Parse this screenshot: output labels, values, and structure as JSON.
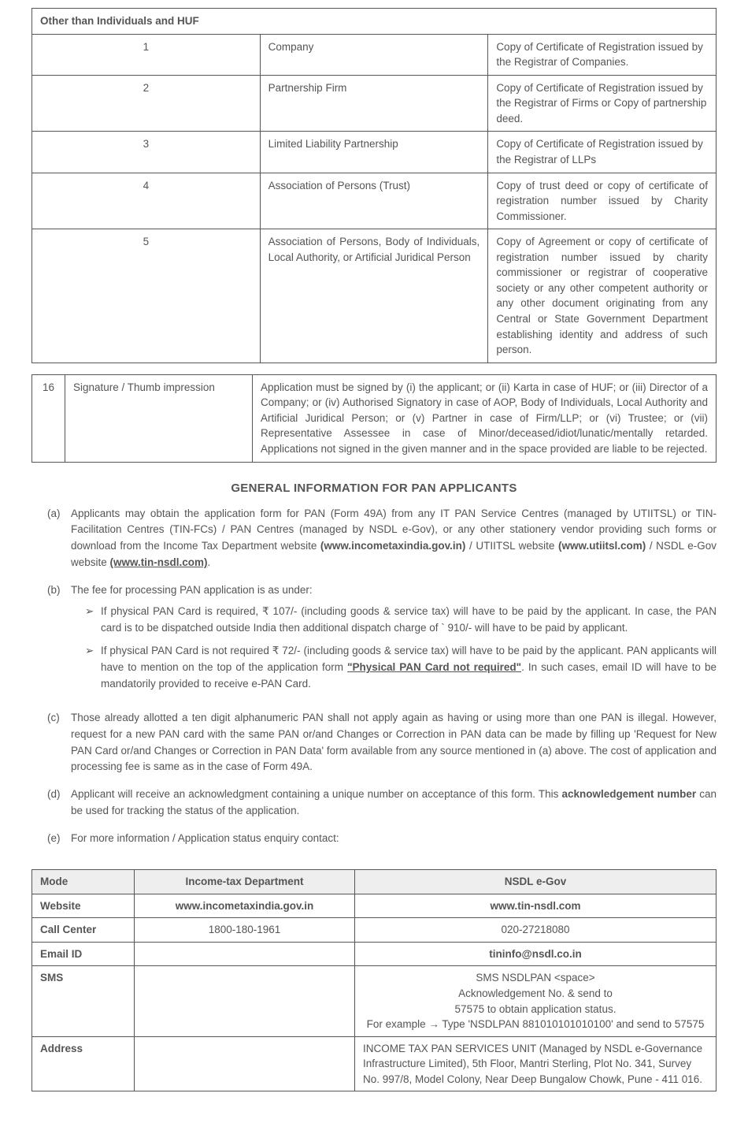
{
  "docTable1": {
    "header": "Other than Individuals and HUF",
    "rows": [
      {
        "num": "1",
        "entity": "Company",
        "doc": "Copy of Certificate of Registration issued by the Registrar of Companies."
      },
      {
        "num": "2",
        "entity": "Partnership Firm",
        "doc": "Copy of Certificate of Registration issued by the Registrar of Firms or Copy of partnership deed."
      },
      {
        "num": "3",
        "entity": "Limited Liability Partnership",
        "doc": "Copy of Certificate of Registration issued by the Registrar of LLPs"
      },
      {
        "num": "4",
        "entity": "Association of Persons (Trust)",
        "doc": "Copy of trust deed or copy of certificate of registration number issued by Charity Commissioner."
      },
      {
        "num": "5",
        "entity": "Association of Persons, Body of Individuals, Local Authority, or Artificial Juridical Person",
        "doc": "Copy of Agreement or copy of certificate of registration number issued by charity commissioner or registrar of cooperative society or any other competent authority or any other document originating from any Central or State Government Department establishing identity and address of such person."
      }
    ]
  },
  "docTable2": {
    "rows": [
      {
        "num": "16",
        "entity": "Signature / Thumb impression",
        "doc": "Application must be signed by (i) the applicant; or (ii) Karta in case of HUF; or (iii) Director of a Company; or (iv) Authorised Signatory in case of AOP, Body of Individuals, Local Authority and Artificial Juridical Person; or (v) Partner in case of Firm/LLP;  or  (vi)  Trustee;  or (vii)  Representative Assessee in  case of Minor/deceased/idiot/lunatic/mentally retarded. Applications not signed in the given manner and in the space provided are liable to be rejected."
      }
    ]
  },
  "heading": "GENERAL INFORMATION FOR PAN APPLICANTS",
  "info": {
    "a_pre": "Applicants may obtain the application form for PAN (Form 49A) from any IT PAN Service Centres (managed by UTIITSL) or TIN-Facilitation Centres (TIN-FCs) / PAN Centres (managed by NSDL e-Gov), or any other stationery vendor providing such forms or download from the Income Tax Department website ",
    "a_link1": "(www.incometaxindia.gov.in)",
    "a_mid1": " / UTIITSL website ",
    "a_link2": "(www.utiitsl.com)",
    "a_mid2": " / NSDL e-Gov website ",
    "a_link3": "(www.tin-nsdl.com)",
    "a_post": ".",
    "b_lead": "The fee for processing PAN application is as under:",
    "b1": "If physical PAN Card is required, ₹ 107/- (including goods & service tax) will have to be paid by the applicant. In case, the PAN card is to be dispatched outside India then additional dispatch charge of ` 910/- will have to be paid by applicant.",
    "b2_pre": "If physical PAN Card is not required ₹ 72/- (including goods & service tax) will have to be paid by the applicant. PAN applicants will have to mention on the top of the application form ",
    "b2_bold": "\"Physical PAN Card not required\"",
    "b2_post": ". In such cases, email ID will have to be mandatorily provided to receive e-PAN Card.",
    "c": "Those already allotted a ten digit alphanumeric PAN shall not apply again as having or using more than one PAN is illegal. However, request for a new PAN card with the same PAN or/and Changes or Correction in PAN data can be made by filling up 'Request for New PAN Card or/and Changes or Correction in PAN Data' form available from any source mentioned in (a) above. The cost of application and processing fee is same as in the case of Form 49A.",
    "d_pre": "Applicant will receive an acknowledgment containing a unique number on acceptance of this form. This ",
    "d_bold": "acknowledgement number",
    "d_post": " can be used for tracking the status of the application.",
    "e": "For more information / Application status enquiry contact:"
  },
  "contact": {
    "headers": {
      "mode": "Mode",
      "itd": "Income-tax Department",
      "nsdl": "NSDL e-Gov"
    },
    "rows": [
      {
        "mode": "Website",
        "itd": "www.incometaxindia.gov.in",
        "nsdl": "www.tin-nsdl.com",
        "boldRow": true,
        "centerNsdl": true
      },
      {
        "mode": "Call Center",
        "itd": "1800-180-1961",
        "nsdl": "020-27218080",
        "centerNsdl": true
      },
      {
        "mode": "Email ID",
        "itd": "",
        "nsdl": "tininfo@nsdl.co.in",
        "boldNsdl": true,
        "centerNsdl": true
      },
      {
        "mode": "SMS",
        "itd": "",
        "nsdl": "SMS NSDLPAN <space>\nAcknowledgement No. & send to\n57575 to obtain application status.\nFor example → Type 'NSDLPAN 881010101010100' and send to 57575",
        "centerNsdl": true
      },
      {
        "mode": "Address",
        "itd": "",
        "nsdl": "INCOME TAX PAN SERVICES UNIT (Managed by NSDL e-Governance Infrastructure Limited), 5th Floor, Mantri Sterling, Plot No. 341, Survey No. 997/8, Model Colony, Near Deep Bungalow Chowk, Pune - 411 016.",
        "centerNsdl": false
      }
    ]
  },
  "markers": {
    "a": "(a)",
    "b": "(b)",
    "c": "(c)",
    "d": "(d)",
    "e": "(e)",
    "bullet": "➢"
  }
}
